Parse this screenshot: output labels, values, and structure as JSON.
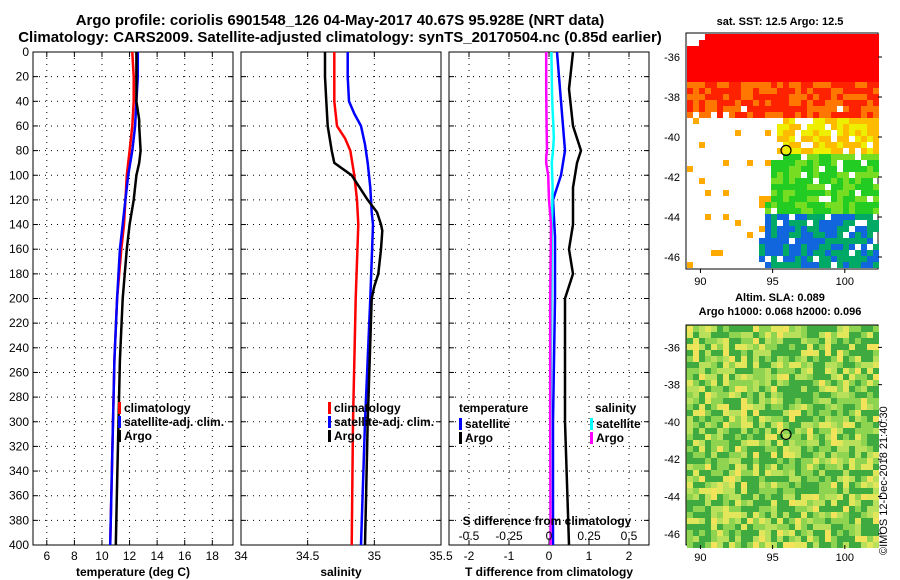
{
  "header": {
    "title_line1": "Argo profile: coriolis 6901548_126 04-May-2017 40.67S 95.928E (NRT data)",
    "title_line2": "Climatology: CARS2009. Satellite-adjusted climatology: synTS_20170504.nc (0.85d earlier)"
  },
  "maps": {
    "sst_title": "sat. SST: 12.5 Argo: 12.5",
    "sla_title_line1": "Altim. SLA: 0.089",
    "sla_title_line2": "Argo h1000: 0.068 h2000: 0.096",
    "lat_ticks": [
      -36,
      -38,
      -40,
      -42,
      -44,
      -46
    ],
    "lon_ticks": [
      90,
      95,
      100
    ],
    "float_position": {
      "lon": 95.928,
      "lat": -40.67
    },
    "credit": "©IMOS 12-Dec-2018 21:40:30"
  },
  "colors": {
    "climatology": "#ff0000",
    "satellite": "#0000ff",
    "argo": "#000000",
    "sat_salinity": "#00ffff",
    "argo_salinity": "#ff00ff"
  },
  "chart_data": [
    {
      "type": "line",
      "xlabel": "temperature (deg C)",
      "xlim": [
        5,
        19.5
      ],
      "xticks": [
        6,
        8,
        10,
        12,
        14,
        16,
        18
      ],
      "ylim": [
        0,
        400
      ],
      "yticks": [
        0,
        20,
        40,
        60,
        80,
        100,
        120,
        140,
        160,
        180,
        200,
        220,
        240,
        260,
        280,
        300,
        320,
        340,
        360,
        380,
        400
      ],
      "legend": [
        "climatology",
        "satellite-adj. clim.",
        "Argo"
      ],
      "series": [
        {
          "name": "climatology",
          "color": "#ff0000",
          "depth": [
            0,
            20,
            40,
            60,
            80,
            100,
            120,
            140,
            160,
            200,
            250,
            300,
            350,
            400
          ],
          "values": [
            12.2,
            12.3,
            12.3,
            12.2,
            12.0,
            11.8,
            11.7,
            11.6,
            11.4,
            11.1,
            10.9,
            10.8,
            10.7,
            10.6
          ]
        },
        {
          "name": "satellite-adj. clim.",
          "color": "#0000ff",
          "depth": [
            0,
            20,
            40,
            60,
            80,
            100,
            120,
            140,
            160,
            200,
            250,
            300,
            350,
            400
          ],
          "values": [
            12.6,
            12.6,
            12.5,
            12.4,
            12.2,
            11.9,
            11.7,
            11.5,
            11.3,
            11.1,
            10.9,
            10.8,
            10.7,
            10.6
          ]
        },
        {
          "name": "Argo",
          "color": "#000000",
          "depth": [
            0,
            20,
            40,
            55,
            60,
            80,
            90,
            100,
            120,
            140,
            160,
            200,
            250,
            300,
            350,
            400
          ],
          "values": [
            12.5,
            12.5,
            12.5,
            12.7,
            12.7,
            12.8,
            12.7,
            12.5,
            12.3,
            12.0,
            11.8,
            11.5,
            11.3,
            11.2,
            11.1,
            11.0
          ]
        }
      ]
    },
    {
      "type": "line",
      "xlabel": "salinity",
      "xlim": [
        34,
        35.5
      ],
      "xticks": [
        34,
        34.5,
        35,
        35.5
      ],
      "ylim": [
        0,
        400
      ],
      "legend": [
        "climatology",
        "satellite-adj. clim.",
        "Argo"
      ],
      "series": [
        {
          "name": "climatology",
          "color": "#ff0000",
          "depth": [
            0,
            20,
            40,
            60,
            70,
            80,
            100,
            120,
            140,
            200,
            300,
            400
          ],
          "values": [
            34.7,
            34.7,
            34.7,
            34.72,
            34.78,
            34.82,
            34.85,
            34.87,
            34.88,
            34.86,
            34.84,
            34.83
          ]
        },
        {
          "name": "satellite-adj. clim.",
          "color": "#0000ff",
          "depth": [
            0,
            20,
            40,
            50,
            60,
            75,
            90,
            110,
            130,
            140,
            200,
            300,
            400
          ],
          "values": [
            34.8,
            34.8,
            34.81,
            34.85,
            34.9,
            34.93,
            34.95,
            34.97,
            34.98,
            34.99,
            34.97,
            34.93,
            34.9
          ]
        },
        {
          "name": "Argo",
          "color": "#000000",
          "depth": [
            0,
            20,
            40,
            60,
            80,
            90,
            100,
            120,
            130,
            140,
            145,
            160,
            180,
            190,
            200,
            300,
            400
          ],
          "values": [
            34.63,
            34.63,
            34.64,
            34.65,
            34.68,
            34.7,
            34.83,
            34.95,
            35.02,
            35.05,
            35.06,
            35.05,
            35.03,
            35.0,
            34.98,
            34.95,
            34.93
          ]
        }
      ]
    },
    {
      "type": "line",
      "xlabel": "T difference from climatology",
      "xlabel_top": "S difference from climatology",
      "xlim": [
        -2.5,
        2.5
      ],
      "xticks": [
        -2,
        -1,
        0,
        1,
        2
      ],
      "xticks_top_labels": [
        "-0.5",
        "-0.25",
        "0",
        "0.25",
        "0.5"
      ],
      "ylim": [
        0,
        400
      ],
      "legend_temperature_title": "temperature",
      "legend_salinity_title": "salinity",
      "legend_temperature": [
        "satellite",
        "Argo"
      ],
      "legend_salinity": [
        "satellite",
        "Argo"
      ],
      "series": [
        {
          "name": "T satellite",
          "color": "#0000ff",
          "depth": [
            0,
            40,
            80,
            100,
            120,
            150,
            200,
            300,
            400
          ],
          "values": [
            0.2,
            0.3,
            0.4,
            0.3,
            0.1,
            0.15,
            0.15,
            0.1,
            0.1
          ]
        },
        {
          "name": "T Argo",
          "color": "#000000",
          "depth": [
            0,
            30,
            60,
            80,
            90,
            110,
            140,
            160,
            180,
            200,
            300,
            400
          ],
          "values": [
            0.6,
            0.5,
            0.6,
            0.8,
            0.7,
            0.6,
            0.6,
            0.5,
            0.6,
            0.4,
            0.4,
            0.5
          ]
        },
        {
          "name": "S satellite",
          "color": "#00ffff",
          "depth": [
            0,
            20,
            40,
            60,
            70,
            80,
            90,
            110,
            130,
            140,
            200,
            300,
            400
          ],
          "values": [
            0.06,
            0.07,
            0.08,
            0.11,
            0.12,
            0.1,
            0.07,
            0.09,
            0.08,
            0.07,
            0.06,
            0.04,
            0.04
          ]
        },
        {
          "name": "S Argo",
          "color": "#ff00ff",
          "depth": [
            0,
            30,
            60,
            80,
            85,
            90,
            100,
            120,
            140,
            200,
            300,
            400
          ],
          "values": [
            -0.07,
            -0.07,
            -0.06,
            -0.05,
            -0.07,
            -0.07,
            -0.02,
            0.0,
            0.05,
            0.03,
            0.03,
            0.04
          ]
        }
      ]
    }
  ]
}
